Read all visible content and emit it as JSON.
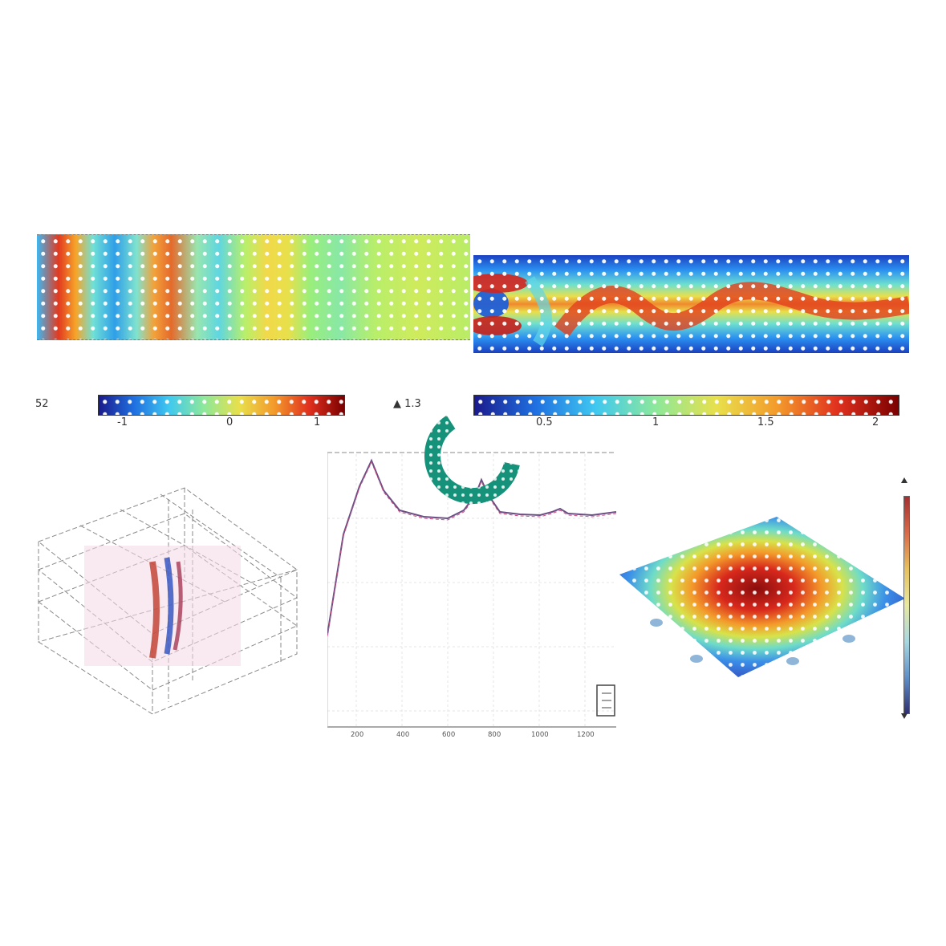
{
  "wave_colorbar": {
    "left_label": "52",
    "ticks": [
      "-1",
      "0",
      "1"
    ]
  },
  "flow_colorbar": {
    "max_label": "▲ 1.3",
    "ticks": [
      "0.5",
      "1",
      "1.5",
      "2"
    ]
  },
  "line_plot": {
    "x_ticks": [
      "200",
      "400",
      "600",
      "800",
      "1000",
      "1200"
    ]
  },
  "colors": {
    "spinner": "#16927a",
    "line": "#6b4f86",
    "line_dash": "#cc4b7a"
  },
  "icons": [
    "loading-spinner-icon"
  ]
}
